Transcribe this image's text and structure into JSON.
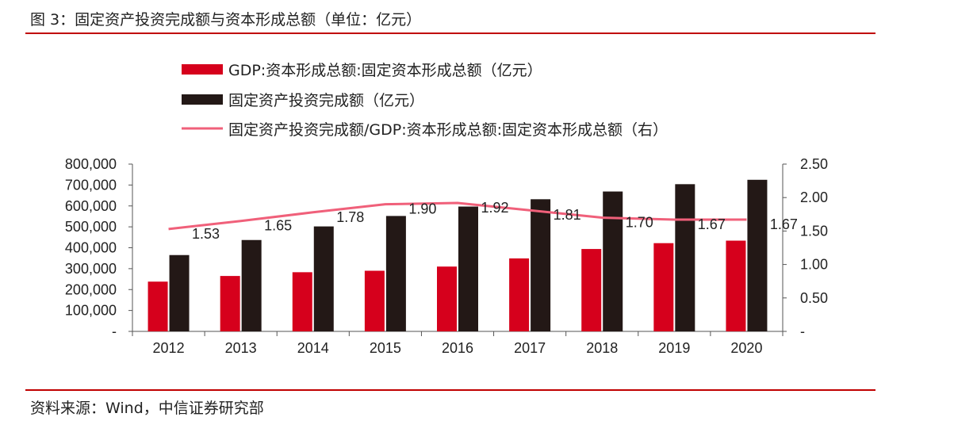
{
  "figure": {
    "title": "图 3：固定资产投资完成额与资本形成总额（单位：亿元）",
    "source": "资料来源：Wind，中信证券研究部"
  },
  "colors": {
    "bar1": "#d6001c",
    "bar2": "#231816",
    "line": "#f0607a",
    "rule": "#c00000"
  },
  "chart_data": {
    "type": "bar",
    "categories": [
      "2012",
      "2013",
      "2014",
      "2015",
      "2016",
      "2017",
      "2018",
      "2019",
      "2020"
    ],
    "series": [
      {
        "name": "GDP:资本形成总额:固定资本形成总额（亿元）",
        "type": "bar",
        "axis": "left",
        "values": [
          238000,
          265000,
          283000,
          290000,
          310000,
          349000,
          394000,
          422000,
          434000
        ]
      },
      {
        "name": "固定资产投资完成额（亿元）",
        "type": "bar",
        "axis": "left",
        "values": [
          365000,
          437000,
          502000,
          552000,
          597000,
          632000,
          669000,
          704000,
          725000
        ]
      },
      {
        "name": "固定资产投资完成额/GDP:资本形成总额:固定资本形成总额（右）",
        "type": "line",
        "axis": "right",
        "values": [
          1.53,
          1.65,
          1.78,
          1.9,
          1.92,
          1.81,
          1.7,
          1.67,
          1.67
        ],
        "labels": [
          "1.53",
          "1.65",
          "1.78",
          "1.90",
          "1.92",
          "1.81",
          "1.70",
          "1.67",
          "1.67"
        ]
      }
    ],
    "y_left": {
      "ylim": [
        0,
        800000
      ],
      "ticks": [
        "-",
        "100,000",
        "200,000",
        "300,000",
        "400,000",
        "500,000",
        "600,000",
        "700,000",
        "800,000"
      ]
    },
    "y_right": {
      "ylim": [
        0,
        2.5
      ],
      "ticks": [
        "-",
        "0.50",
        "1.00",
        "1.50",
        "2.00",
        "2.50"
      ]
    },
    "legend_position": "top",
    "grid": false
  }
}
